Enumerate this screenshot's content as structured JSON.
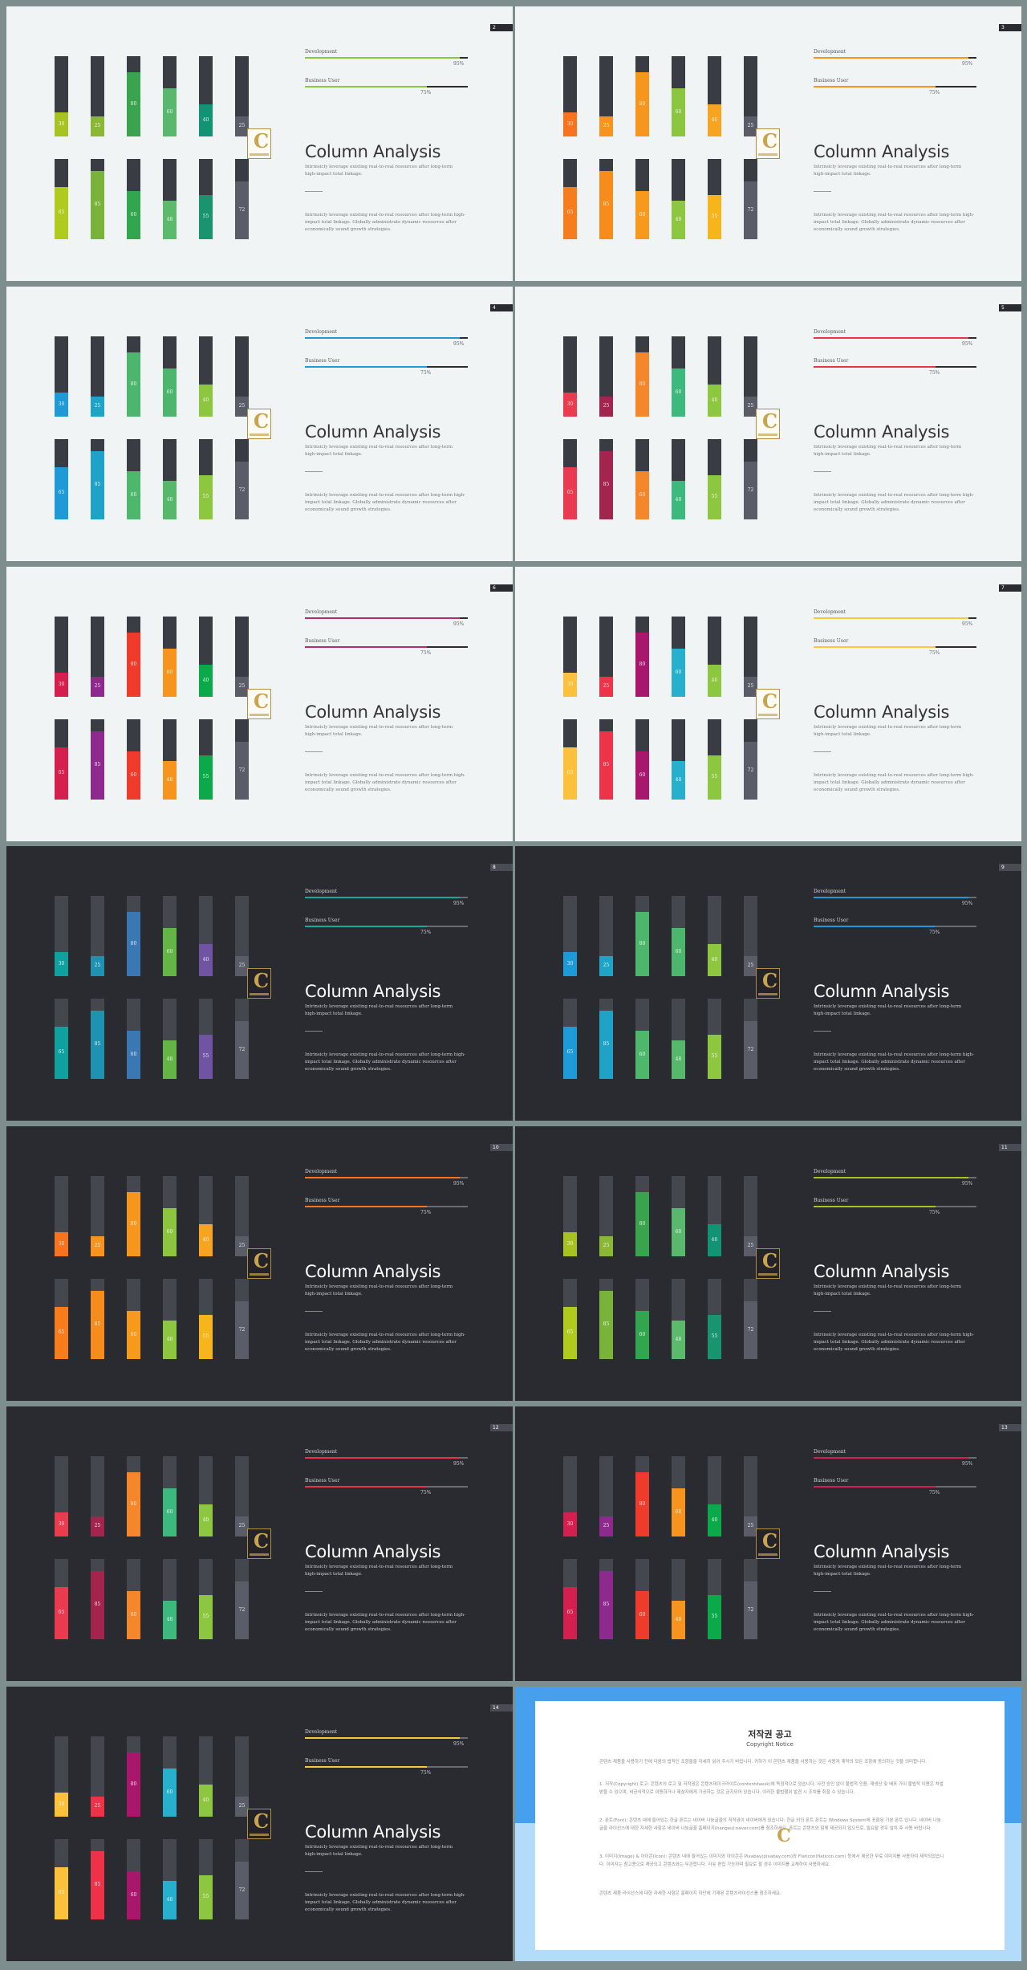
{
  "slide_title": "Column Analysis",
  "subtitle_text": "Intrinsicly leverage existing real-to-real resources after long-term high-impact total linkage.",
  "description_text": "Intrinsicly leverage existing real-to-real resources after long-term high-impact total linkage. Globally administrate dynamic resources after economically sound growth strategies.",
  "logo_letter": "C",
  "progress": [
    {
      "label": "Development",
      "percent": 95,
      "display": "95%"
    },
    {
      "label": "Business User",
      "percent": 75,
      "display": "75%"
    }
  ],
  "columns_top": [
    {
      "value": 30,
      "label": "30"
    },
    {
      "value": 25,
      "label": "25"
    },
    {
      "value": 80,
      "label": "80"
    },
    {
      "value": 60,
      "label": "60"
    },
    {
      "value": 40,
      "label": "40"
    },
    {
      "value": 25,
      "label": "25"
    }
  ],
  "columns_bottom": [
    {
      "value": 65,
      "label": "65"
    },
    {
      "value": 85,
      "label": "85"
    },
    {
      "value": 60,
      "label": "60"
    },
    {
      "value": 48,
      "label": "48"
    },
    {
      "value": 55,
      "label": "55"
    },
    {
      "value": 72,
      "label": "72"
    }
  ],
  "slides": [
    {
      "page": "2",
      "theme": "light",
      "line_color": "#8dc63f",
      "top_colors": [
        "#a8c321",
        "#8ab834",
        "#3aa34d",
        "#59b86d",
        "#109473",
        "#5a5d68"
      ],
      "bottom_colors": [
        "#b0ca1d",
        "#7ab33a",
        "#31a64e",
        "#5cba6d",
        "#18956e",
        "#5a5d68"
      ]
    },
    {
      "page": "3",
      "theme": "light",
      "line_color": "#f7941d",
      "top_colors": [
        "#f7731d",
        "#f7931e",
        "#f7961c",
        "#8cc63f",
        "#f7a521",
        "#5a5d68"
      ],
      "bottom_colors": [
        "#f77d1c",
        "#f78b1c",
        "#f79a1b",
        "#8dc63f",
        "#f7b51c",
        "#5a5d68"
      ]
    },
    {
      "page": "4",
      "theme": "light",
      "line_color": "#1e9ad6",
      "top_colors": [
        "#1e9ad6",
        "#1fa4c7",
        "#4cb66c",
        "#4cb66c",
        "#8dc63f",
        "#5a5d68"
      ],
      "bottom_colors": [
        "#1e9ad6",
        "#1ea2c8",
        "#4db76b",
        "#55b86a",
        "#8dc63f",
        "#5a5d68"
      ]
    },
    {
      "page": "5",
      "theme": "light",
      "line_color": "#e8344b",
      "top_colors": [
        "#eb3b4f",
        "#a3244c",
        "#f5862a",
        "#3db97e",
        "#8dc63f",
        "#5a5d68"
      ],
      "bottom_colors": [
        "#ea3a4f",
        "#a3244c",
        "#f5862a",
        "#3db97e",
        "#8dc63f",
        "#5a5d68"
      ]
    },
    {
      "page": "6",
      "theme": "light",
      "line_color": "#b52c6e",
      "top_colors": [
        "#d41f4f",
        "#8e2a8e",
        "#ef3b2b",
        "#f7941d",
        "#0aaa4b",
        "#5a5d68"
      ],
      "bottom_colors": [
        "#d41f4f",
        "#8e2a8e",
        "#ef3b2b",
        "#f7941d",
        "#0aaa4b",
        "#5a5d68"
      ]
    },
    {
      "page": "7",
      "theme": "light",
      "line_color": "#fbc83a",
      "top_colors": [
        "#fcc13b",
        "#ee3248",
        "#a8176c",
        "#27b0cd",
        "#8dc63f",
        "#5a5d68"
      ],
      "bottom_colors": [
        "#fcc13b",
        "#ee3248",
        "#a8176c",
        "#27b0cd",
        "#8dc63f",
        "#5a5d68"
      ]
    },
    {
      "page": "8",
      "theme": "dark",
      "line_color": "#16a99c",
      "top_colors": [
        "#0ea1a0",
        "#1e92b0",
        "#3a78b4",
        "#63b545",
        "#6e54a3",
        "#5a5d68"
      ],
      "bottom_colors": [
        "#0ea1a0",
        "#1e92b0",
        "#3a78b4",
        "#63b545",
        "#6e54a3",
        "#5a5d68"
      ]
    },
    {
      "page": "9",
      "theme": "dark",
      "line_color": "#1e9ad6",
      "top_colors": [
        "#1e9ad6",
        "#1fa4c7",
        "#4cb66c",
        "#4cb66c",
        "#8dc63f",
        "#5a5d68"
      ],
      "bottom_colors": [
        "#1e9ad6",
        "#1ea2c8",
        "#4db76b",
        "#55b86a",
        "#8dc63f",
        "#5a5d68"
      ]
    },
    {
      "page": "10",
      "theme": "dark",
      "line_color": "#f7731d",
      "top_colors": [
        "#f7731d",
        "#f7931e",
        "#f7961c",
        "#8cc63f",
        "#f7a521",
        "#5a5d68"
      ],
      "bottom_colors": [
        "#f77d1c",
        "#f78b1c",
        "#f79a1b",
        "#8dc63f",
        "#f7b51c",
        "#5a5d68"
      ]
    },
    {
      "page": "11",
      "theme": "dark",
      "line_color": "#a8c321",
      "top_colors": [
        "#a8c321",
        "#8ab834",
        "#3aa34d",
        "#59b86d",
        "#109473",
        "#5a5d68"
      ],
      "bottom_colors": [
        "#b0ca1d",
        "#7ab33a",
        "#31a64e",
        "#5cba6d",
        "#18956e",
        "#5a5d68"
      ]
    },
    {
      "page": "12",
      "theme": "dark",
      "line_color": "#e8344b",
      "top_colors": [
        "#eb3b4f",
        "#a3244c",
        "#f5862a",
        "#3db97e",
        "#8dc63f",
        "#5a5d68"
      ],
      "bottom_colors": [
        "#ea3a4f",
        "#a3244c",
        "#f5862a",
        "#3db97e",
        "#8dc63f",
        "#5a5d68"
      ]
    },
    {
      "page": "13",
      "theme": "dark",
      "line_color": "#d41f4f",
      "top_colors": [
        "#d41f4f",
        "#8e2a8e",
        "#ef3b2b",
        "#f7941d",
        "#0aaa4b",
        "#5a5d68"
      ],
      "bottom_colors": [
        "#d41f4f",
        "#8e2a8e",
        "#ef3b2b",
        "#f7941d",
        "#0aaa4b",
        "#5a5d68"
      ]
    },
    {
      "page": "14",
      "theme": "dark",
      "line_color": "#fbc83a",
      "top_colors": [
        "#fcc13b",
        "#ee3248",
        "#a8176c",
        "#27b0cd",
        "#8dc63f",
        "#5a5d68"
      ],
      "bottom_colors": [
        "#fcc13b",
        "#ee3248",
        "#a8176c",
        "#27b0cd",
        "#8dc63f",
        "#5a5d68"
      ]
    }
  ],
  "copyright": {
    "title": "저작권 공고",
    "subtitle": "Copyright Notice",
    "paragraphs": [
      "콘텐츠 제품을 사용하기 전에 다음의 법적인 조항들을 자세히 읽어 주시기 바랍니다. 귀하가 이 콘텐츠 제품을 사용하는 것은 사용자 계약의 모든 조항에 동의하는 것을 의미합니다.",
      "1. 저작(Copyright) 로고: 콘텐츠의 로고 및 저작권은 콘텐츠데이크라이트(contentdaesk)에 독점적으로 있습니다. 사전 승인 없이 불법적 인용, 재생산 및 배포 가이 불법적 이용은 처벌 받을 수 있으며, 비공식적으로 이용하거나 제삼자에게 가공하는 것은 금지되어 있습니다. 이러한 불법행위 발견 시 조치를 취할 수 있습니다.",
      "2. 폰트(Font): 콘텐츠 내에 들어있는 한글 폰트는 네이버 나눔글꼴의 저작권이 네이버에게 있습니다. 한글 외의 폰트 폰트는 Windows System에 포함된 기본 폰트 입니다. 네이버 나눔글꼴 라이선스에 대한 자세한 사항은 네이버 나눔글꼴 홈페이지(hangeul.naver.com)를 참조하세요. 폰트는 콘텐츠와 함께 제공되지 않으므로, 필요할 경우 설치 후 사용 바랍니다.",
      "3. 이미지(Image) & 아이콘(Icon): 콘텐츠 내에 들어있는 이미지와 아이콘은 Pixabay(pixabay.com)와 Flaticon(flaticon.com) 등에서 제공한 무료 이미지를 사용하여 제작되었습니다. 이미지는 참고용으로 제공되고 콘텐츠와는 무관합니다. 자유 편집 가능하며 필요로 할 경우 이미지를 교체하여 사용하세요.",
      "콘텐츠 제품 라이선스에 대한 자세한 사항은 홈페이지 하단에 기재된 콘텐츠라이선스를 참조하세요."
    ]
  }
}
